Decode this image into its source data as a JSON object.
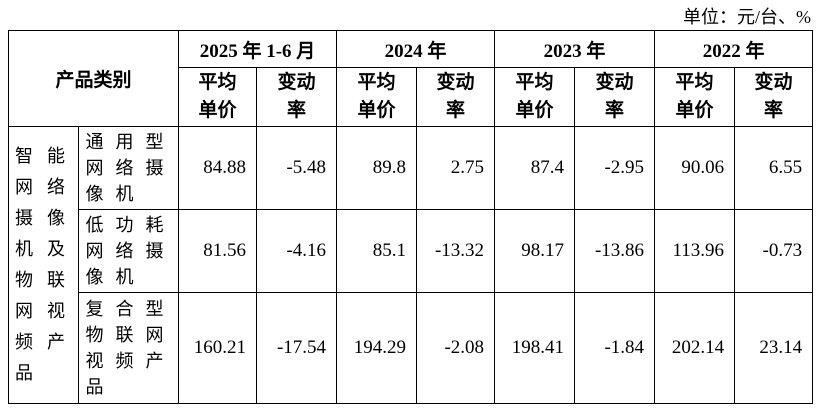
{
  "unit": "单位：元/台、%",
  "header": {
    "category": "产品类别",
    "periods": [
      "2025 年 1-6 月",
      "2024 年",
      "2023 年",
      "2022 年"
    ],
    "price": "平均单价",
    "change": "变动率"
  },
  "group": "智能网络摄像机及物联网视频产品",
  "rows": [
    {
      "name": "通用型网络摄像机",
      "values": [
        84.88,
        -5.48,
        89.8,
        2.75,
        87.4,
        -2.95,
        90.06,
        6.55
      ]
    },
    {
      "name": "低功耗网络摄像机",
      "values": [
        81.56,
        -4.16,
        85.1,
        -13.32,
        98.17,
        -13.86,
        113.96,
        -0.73
      ]
    },
    {
      "name": "复合型物联网视频产品",
      "values": [
        160.21,
        -17.54,
        194.29,
        -2.08,
        198.41,
        -1.84,
        202.14,
        23.14
      ]
    }
  ]
}
